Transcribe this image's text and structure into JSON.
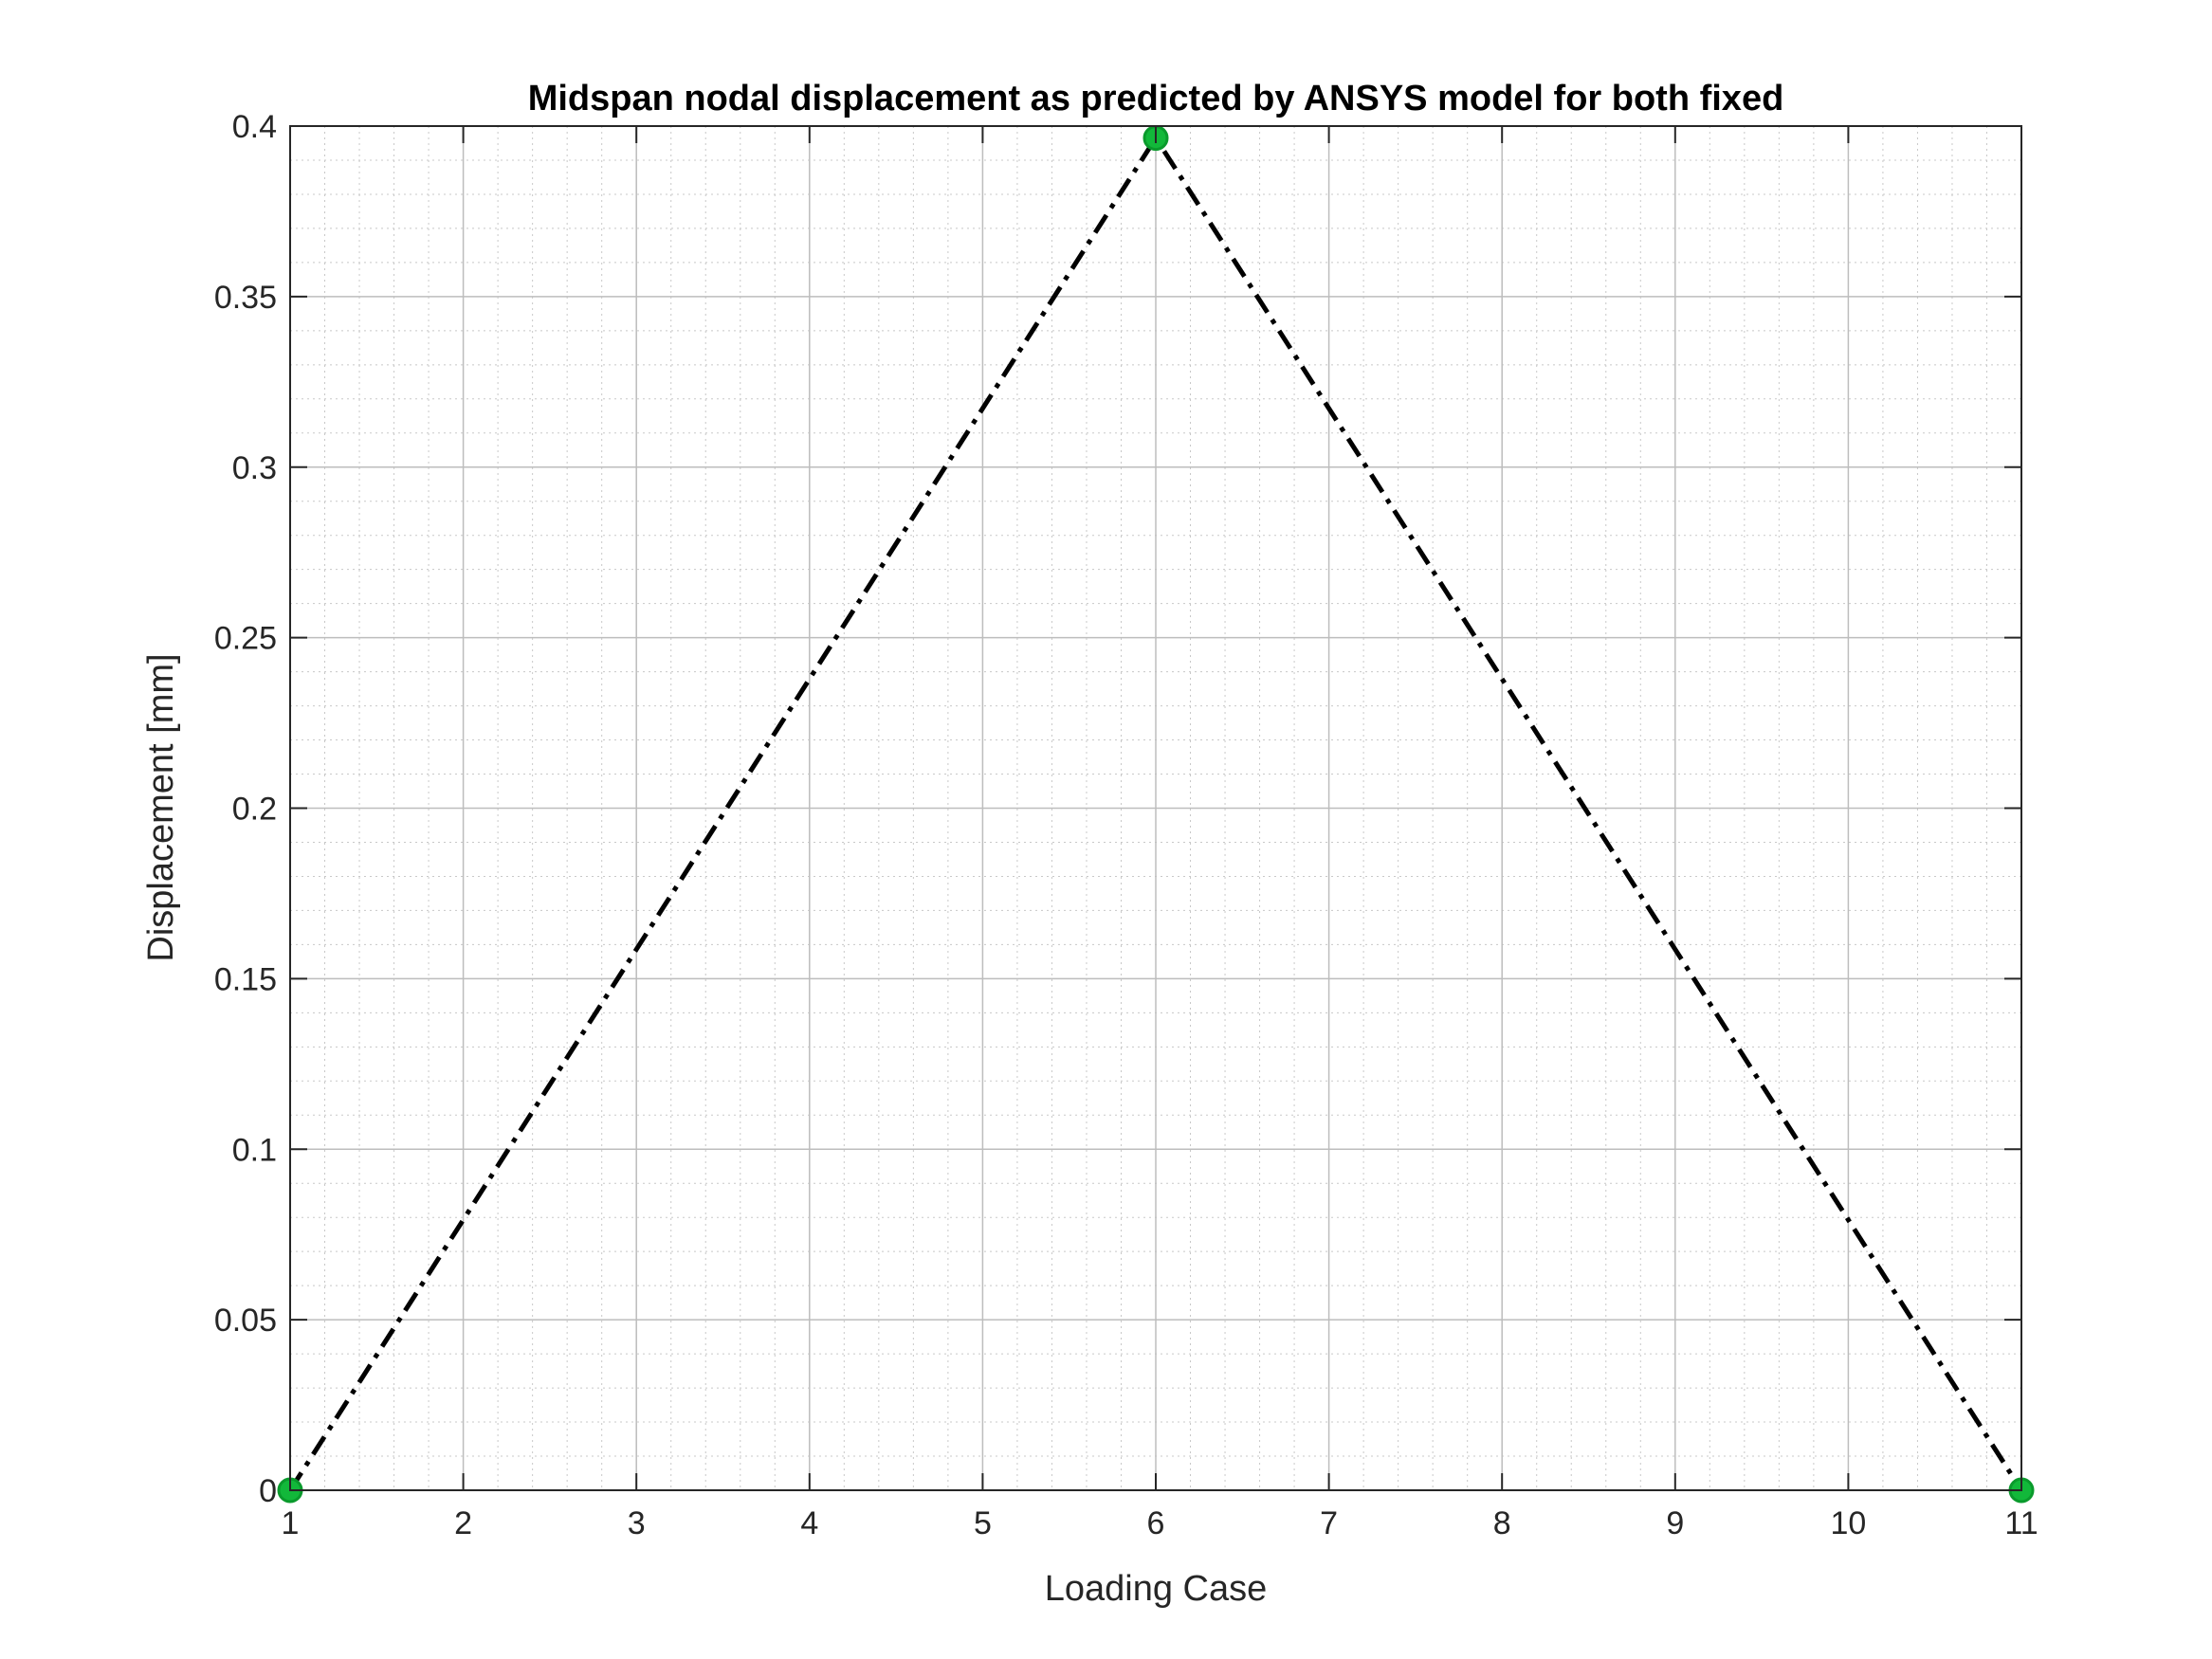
{
  "chart_data": {
    "type": "line",
    "title": "Midspan nodal displacement as predicted by ANSYS model for both fixed",
    "xlabel": "Loading Case",
    "ylabel": "Displacement [mm]",
    "xlim": [
      1,
      11
    ],
    "ylim": [
      0,
      0.4
    ],
    "xticks": [
      "1",
      "2",
      "3",
      "4",
      "5",
      "6",
      "7",
      "8",
      "9",
      "10",
      "11"
    ],
    "yticks": [
      "0",
      "0.05",
      "0.1",
      "0.15",
      "0.2",
      "0.25",
      "0.3",
      "0.35",
      "0.4"
    ],
    "grid": true,
    "minor_grid": true,
    "series": [
      {
        "x": [
          1,
          2,
          3,
          4,
          5,
          6,
          7,
          8,
          9,
          10,
          11
        ],
        "values": [
          0,
          0.0793,
          0.1586,
          0.2379,
          0.3172,
          0.3965,
          0.3172,
          0.2379,
          0.1586,
          0.0793,
          0
        ],
        "color": "#000000",
        "line_style": "dash-dot"
      }
    ],
    "markers": {
      "x": [
        1,
        6,
        11
      ],
      "values": [
        0,
        0.3965,
        0
      ],
      "color": "#12b83a"
    }
  }
}
